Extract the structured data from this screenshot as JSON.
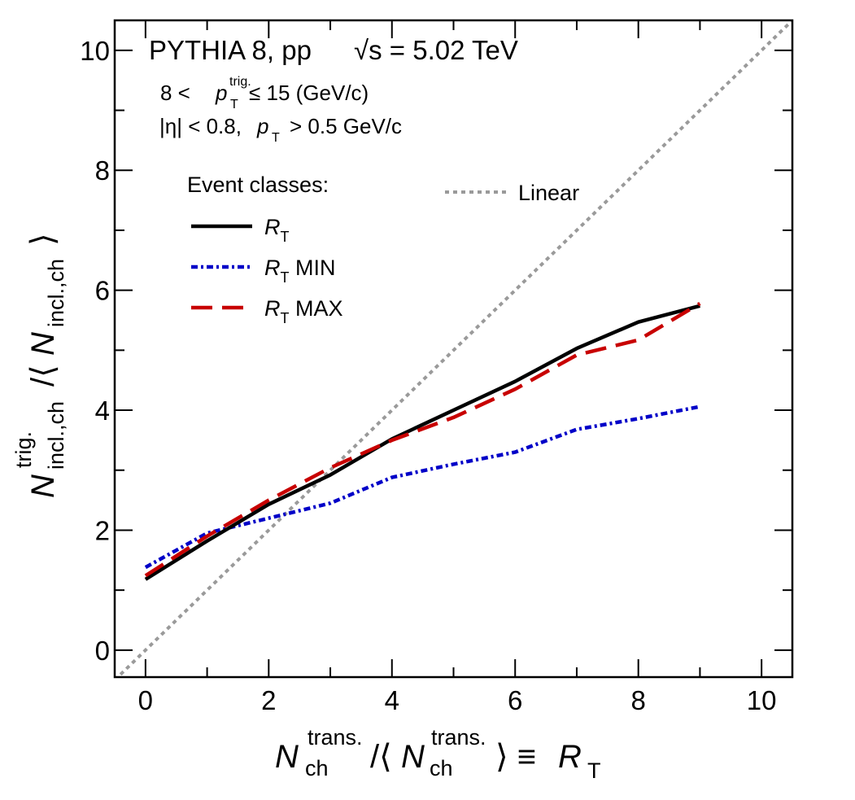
{
  "chart_data": {
    "type": "line",
    "title": "PYTHIA 8, pp",
    "energy_label": "√s = 5.02 TeV",
    "annotations": {
      "trigger_pt": {
        "lower": "8 <",
        "symbol": "p",
        "sub": "T",
        "sup": "trig.",
        "upper": "≤ 15 (GeV/c)"
      },
      "acceptance": {
        "eta_cut": "|η| < 0.8,",
        "symbol": "p",
        "sub": "T",
        "pt_cut": "> 0.5 GeV/c"
      }
    },
    "legend_header": "Event classes:",
    "xlabel": {
      "symbol": "N",
      "sub": "ch",
      "sup": "trans.",
      "slash": "/⟨",
      "close": "⟩ ≡",
      "rt_symbol": "R",
      "rt_sub": "T"
    },
    "ylabel": {
      "symbol": "N",
      "sub": "incl.,ch",
      "sup": "trig.",
      "slash": "/⟨",
      "close": "⟩"
    },
    "xlim": [
      -0.5,
      10.5
    ],
    "ylim": [
      -0.45,
      10.5
    ],
    "x_ticks": [
      0,
      2,
      4,
      6,
      8,
      10
    ],
    "x_tick_labels": [
      "0",
      "2",
      "4",
      "6",
      "8",
      "10"
    ],
    "y_ticks": [
      0,
      2,
      4,
      6,
      8,
      10
    ],
    "y_tick_labels": [
      "0",
      "2",
      "4",
      "6",
      "8",
      "10"
    ],
    "grid": false,
    "legend_position": "top-left",
    "series": [
      {
        "name": "R",
        "name_sub": "T",
        "name_suffix": "",
        "color": "#000000",
        "style": "solid",
        "x": [
          0,
          1,
          2,
          3,
          4,
          5,
          6,
          7,
          8,
          9
        ],
        "y": [
          1.18,
          1.82,
          2.43,
          2.92,
          3.52,
          4.0,
          4.48,
          5.03,
          5.47,
          5.74
        ]
      },
      {
        "name": "R",
        "name_sub": "T",
        "name_suffix": " MIN",
        "color": "#0000c8",
        "style": "dashdot",
        "x": [
          0,
          1,
          2,
          3,
          4,
          5,
          6,
          7,
          8,
          9
        ],
        "y": [
          1.38,
          1.95,
          2.2,
          2.45,
          2.88,
          3.1,
          3.3,
          3.68,
          3.86,
          4.06
        ]
      },
      {
        "name": "R",
        "name_sub": "T",
        "name_suffix": " MAX",
        "color": "#c80000",
        "style": "dashed",
        "x": [
          0,
          1,
          2,
          3,
          4,
          5,
          6,
          7,
          8,
          9
        ],
        "y": [
          1.24,
          1.9,
          2.5,
          3.04,
          3.5,
          3.88,
          4.35,
          4.92,
          5.17,
          5.78
        ]
      },
      {
        "name": "Linear",
        "color": "#9a9a9a",
        "style": "dotted",
        "x": [
          -0.5,
          10.5
        ],
        "y": [
          -0.5,
          10.5
        ]
      }
    ]
  }
}
